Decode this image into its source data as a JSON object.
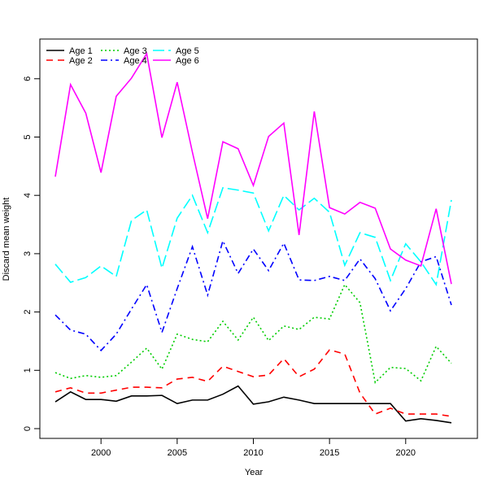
{
  "chart_data": {
    "type": "line",
    "title": "",
    "xlabel": "Year",
    "ylabel": "Discard mean weight",
    "xlim": [
      1996,
      2024
    ],
    "ylim": [
      -0.17,
      6.7
    ],
    "xticks": [
      2000,
      2005,
      2010,
      2015,
      2020
    ],
    "yticks": [
      0,
      1,
      2,
      3,
      4,
      5,
      6
    ],
    "grid": false,
    "legend_position": "top-left",
    "x": [
      1997,
      1998,
      1999,
      2000,
      2001,
      2002,
      2003,
      2004,
      2005,
      2006,
      2007,
      2008,
      2009,
      2010,
      2011,
      2012,
      2013,
      2014,
      2015,
      2016,
      2017,
      2018,
      2019,
      2020,
      2021,
      2022,
      2023
    ],
    "series": [
      {
        "name": "Age 1",
        "color": "#000000",
        "dash": "",
        "values": [
          0.46,
          0.63,
          0.5,
          0.5,
          0.47,
          0.56,
          0.56,
          0.57,
          0.43,
          0.49,
          0.49,
          0.59,
          0.73,
          0.42,
          0.46,
          0.54,
          0.49,
          0.43,
          0.43,
          0.43,
          0.43,
          0.43,
          0.43,
          0.13,
          0.17,
          0.14,
          0.1
        ]
      },
      {
        "name": "Age 2",
        "color": "#ff0000",
        "dash": "8,6",
        "values": [
          0.63,
          0.7,
          0.61,
          0.61,
          0.66,
          0.71,
          0.71,
          0.7,
          0.85,
          0.88,
          0.81,
          1.07,
          0.98,
          0.89,
          0.92,
          1.2,
          0.89,
          1.02,
          1.35,
          1.28,
          0.61,
          0.25,
          0.35,
          0.25,
          0.25,
          0.25,
          0.21
        ]
      },
      {
        "name": "Age 3",
        "color": "#00cd00",
        "dash": "2,3",
        "values": [
          0.96,
          0.86,
          0.91,
          0.88,
          0.91,
          1.14,
          1.38,
          1.02,
          1.62,
          1.53,
          1.49,
          1.84,
          1.52,
          1.91,
          1.51,
          1.76,
          1.7,
          1.91,
          1.88,
          2.47,
          2.16,
          0.79,
          1.05,
          1.03,
          0.82,
          1.41,
          1.12
        ]
      },
      {
        "name": "Age 4",
        "color": "#0000ff",
        "dash": "8,4,2,4",
        "values": [
          1.95,
          1.69,
          1.62,
          1.34,
          1.62,
          2.05,
          2.47,
          1.65,
          2.4,
          3.12,
          2.29,
          3.22,
          2.66,
          3.08,
          2.71,
          3.18,
          2.55,
          2.54,
          2.61,
          2.54,
          2.91,
          2.57,
          2.02,
          2.4,
          2.86,
          2.95,
          2.12
        ]
      },
      {
        "name": "Age 5",
        "color": "#00ffff",
        "dash": "14,5",
        "values": [
          2.82,
          2.51,
          2.59,
          2.79,
          2.61,
          3.57,
          3.75,
          2.75,
          3.61,
          4.0,
          3.36,
          4.13,
          4.09,
          4.04,
          3.39,
          4.0,
          3.75,
          3.95,
          3.71,
          2.8,
          3.36,
          3.28,
          2.54,
          3.17,
          2.86,
          2.47,
          3.92
        ]
      },
      {
        "name": "Age 6",
        "color": "#ff00ff",
        "dash": "",
        "values": [
          4.32,
          5.9,
          5.41,
          4.39,
          5.7,
          6.01,
          6.43,
          4.99,
          5.94,
          4.74,
          3.6,
          4.92,
          4.8,
          4.17,
          5.01,
          5.24,
          3.32,
          5.44,
          3.79,
          3.68,
          3.88,
          3.78,
          3.08,
          2.89,
          2.79,
          3.77,
          2.48
        ]
      }
    ]
  }
}
